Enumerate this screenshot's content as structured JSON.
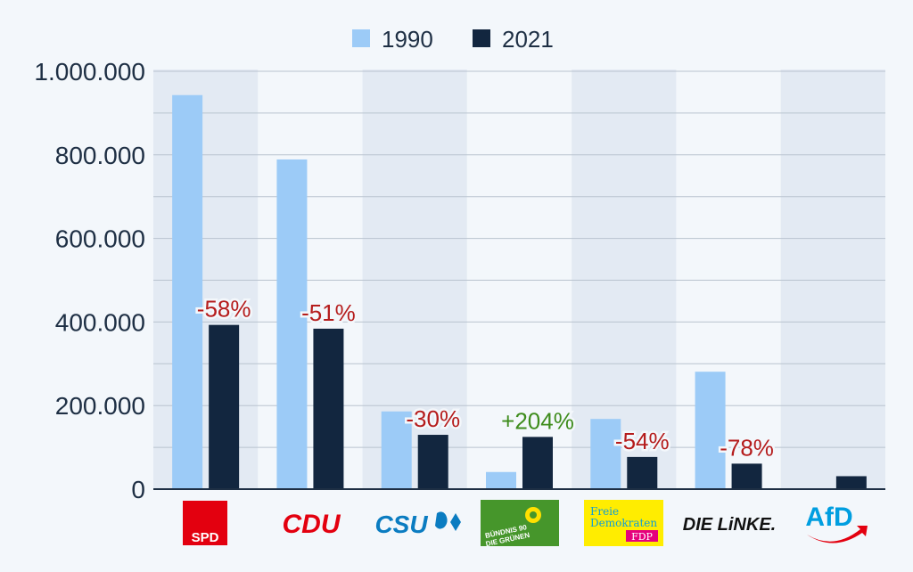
{
  "chart_data": {
    "type": "bar",
    "title": "",
    "xlabel": "",
    "ylabel": "",
    "ylim": [
      0,
      1000000
    ],
    "y_ticks": [
      0,
      200000,
      400000,
      600000,
      800000,
      1000000
    ],
    "y_tick_labels": [
      "0",
      "200.000",
      "400.000",
      "600.000",
      "800.000",
      "1.000.000"
    ],
    "grid": true,
    "legend_position": "top-center",
    "categories": [
      "SPD",
      "CDU",
      "CSU",
      "BÜNDNIS 90 DIE GRÜNEN",
      "FDP",
      "DIE LINKE.",
      "AfD"
    ],
    "series": [
      {
        "name": "1990",
        "color": "#9ccbf7",
        "values": [
          943000,
          789000,
          186000,
          41000,
          168000,
          281000,
          null
        ]
      },
      {
        "name": "2021",
        "color": "#12263f",
        "values": [
          393000,
          384000,
          130000,
          125000,
          77000,
          61000,
          31000
        ]
      }
    ],
    "change_labels": [
      "-58%",
      "-51%",
      "-30%",
      "+204%",
      "-54%",
      "-78%",
      ""
    ],
    "change_colors": [
      "#b51c1c",
      "#b51c1c",
      "#b51c1c",
      "#3e8c1c",
      "#b51c1c",
      "#b51c1c",
      "#b51c1c"
    ],
    "logos": [
      {
        "text": "SPD",
        "icon": "spd-logo",
        "bg": "#e3000f",
        "fg": "#ffffff"
      },
      {
        "text": "CDU",
        "icon": "cdu-logo",
        "fg": "#e3000f"
      },
      {
        "text": "CSU",
        "icon": "csu-logo",
        "fg": "#0a7cc1"
      },
      {
        "text_line1": "BÜNDNIS 90",
        "text_line2": "DIE GRÜNEN",
        "icon": "gruene-sunflower-logo",
        "bg": "#46962b",
        "fg": "#ffffff"
      },
      {
        "text_line1": "Freie",
        "text_line2": "Demokraten",
        "text_line3": "FDP",
        "icon": "fdp-logo",
        "bg": "#ffed00",
        "fg": "#0f9dd6",
        "accent": "#e5007d"
      },
      {
        "text": "DIE LiNKE.",
        "icon": "linke-logo",
        "fg": "#111111"
      },
      {
        "text": "AfD",
        "icon": "afd-logo",
        "fg": "#009ee0",
        "accent": "#e3000f"
      }
    ]
  }
}
